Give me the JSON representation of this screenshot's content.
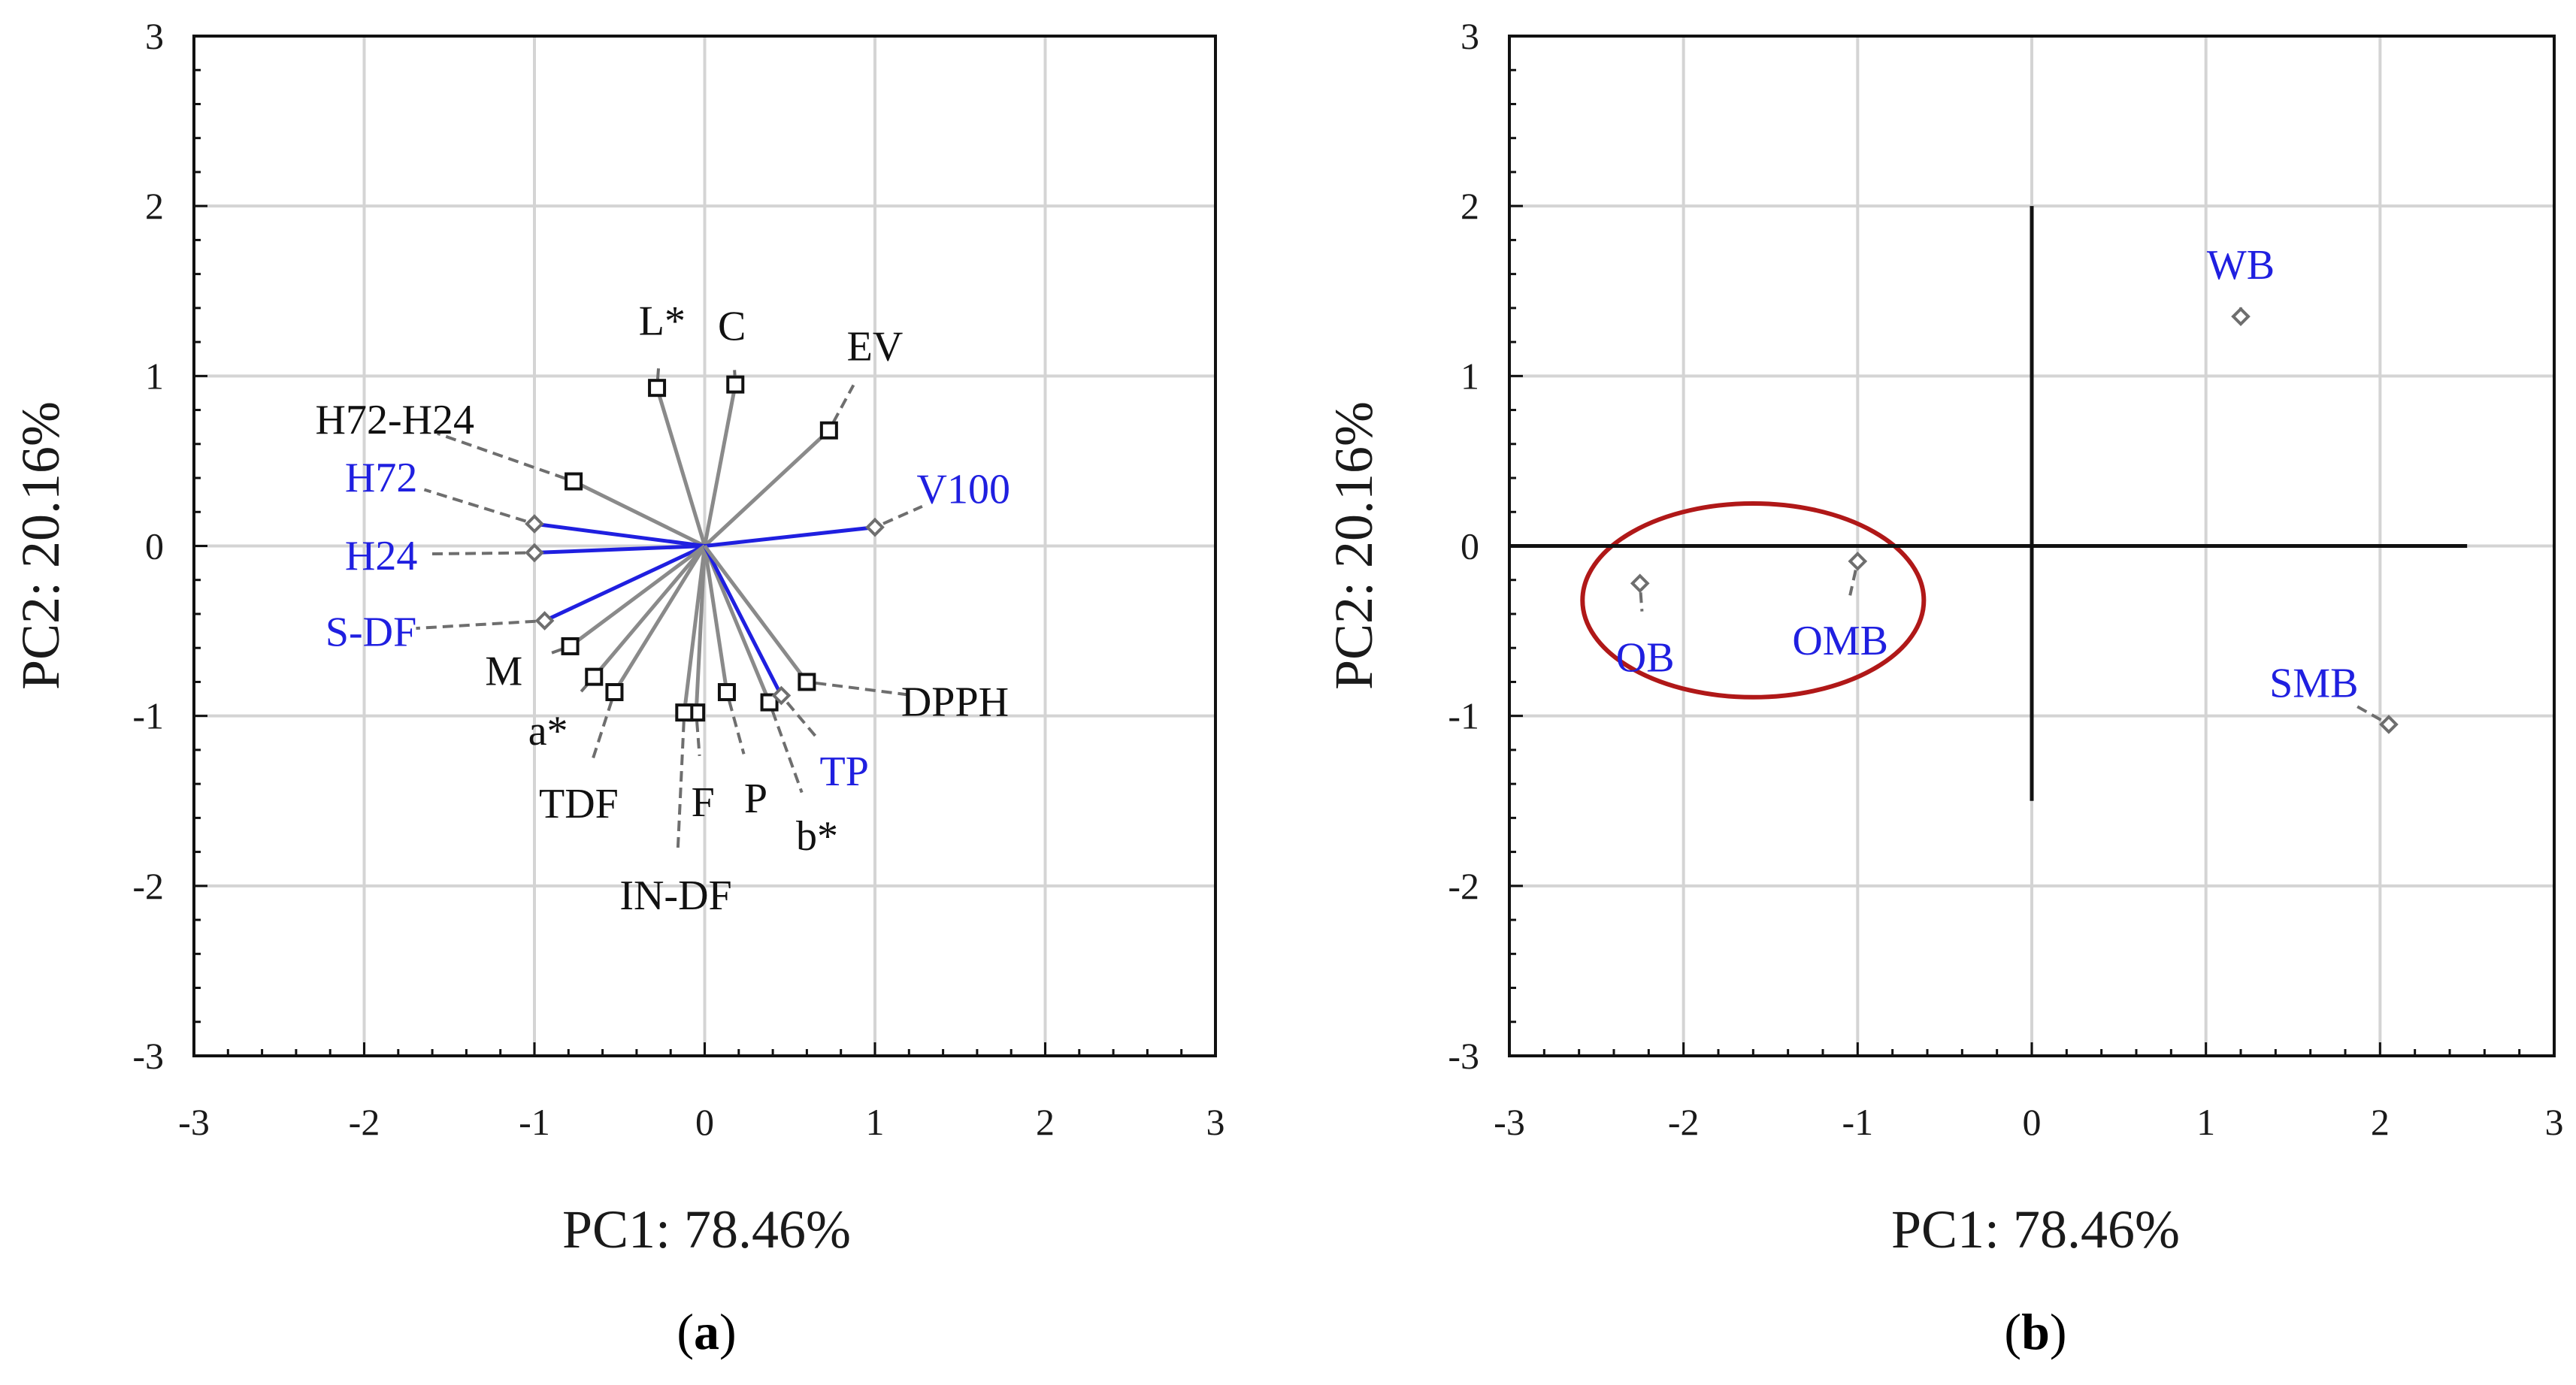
{
  "colors": {
    "blue": "#1f1fe0",
    "black": "#111111",
    "grid": "#d4d4d4",
    "vector_gray": "#8a8a8a",
    "leader": "#6e6e6e",
    "ellipse": "#b01818"
  },
  "chart_data": [
    {
      "panel": "a",
      "type": "scatter",
      "subtype": "biplot-loadings",
      "caption_open": "(",
      "caption_letter": "a",
      "caption_close": ")",
      "xlabel": "PC1: 78.46%",
      "ylabel": "PC2: 20.16%",
      "xlim": [
        -3,
        3
      ],
      "ylim": [
        -3,
        3
      ],
      "xticks": [
        -3,
        -2,
        -1,
        0,
        1,
        2,
        3
      ],
      "yticks": [
        -3,
        -2,
        -1,
        0,
        1,
        2,
        3
      ],
      "grid": true,
      "points": [
        {
          "label": "L*",
          "x": -0.28,
          "y": 0.93,
          "marker": "square",
          "color": "black",
          "lx": -0.25,
          "ly": 1.33
        },
        {
          "label": "C",
          "x": 0.18,
          "y": 0.95,
          "marker": "square",
          "color": "black",
          "lx": 0.16,
          "ly": 1.3
        },
        {
          "label": "EV",
          "x": 0.73,
          "y": 0.68,
          "marker": "square",
          "color": "black",
          "lx": 1.0,
          "ly": 1.18
        },
        {
          "label": "H72-H24",
          "x": -0.77,
          "y": 0.38,
          "marker": "square",
          "color": "black",
          "lx": -1.82,
          "ly": 0.75
        },
        {
          "label": "H72",
          "x": -1.0,
          "y": 0.13,
          "marker": "diamond",
          "color": "blue",
          "lx": -1.9,
          "ly": 0.41
        },
        {
          "label": "V100",
          "x": 1.0,
          "y": 0.11,
          "marker": "diamond",
          "color": "blue",
          "lx": 1.52,
          "ly": 0.34
        },
        {
          "label": "H24",
          "x": -1.0,
          "y": -0.04,
          "marker": "diamond",
          "color": "blue",
          "lx": -1.9,
          "ly": -0.05
        },
        {
          "label": "S-DF",
          "x": -0.94,
          "y": -0.44,
          "marker": "diamond",
          "color": "blue",
          "lx": -1.96,
          "ly": -0.5
        },
        {
          "label": "M",
          "x": -0.79,
          "y": -0.59,
          "marker": "square",
          "color": "black",
          "lx": -1.18,
          "ly": -0.73
        },
        {
          "label": "a*",
          "x": -0.65,
          "y": -0.77,
          "marker": "square",
          "color": "black",
          "lx": -0.92,
          "ly": -1.08
        },
        {
          "label": "TDF",
          "x": -0.53,
          "y": -0.86,
          "marker": "square",
          "color": "black",
          "lx": -0.74,
          "ly": -1.51
        },
        {
          "label": "F",
          "x": -0.05,
          "y": -0.98,
          "marker": "square",
          "color": "black",
          "lx": -0.01,
          "ly": -1.5
        },
        {
          "label": "IN-DF",
          "x": -0.12,
          "y": -0.98,
          "marker": "square",
          "color": "black",
          "lx": -0.17,
          "ly": -2.05
        },
        {
          "label": "P",
          "x": 0.13,
          "y": -0.86,
          "marker": "square",
          "color": "black",
          "lx": 0.3,
          "ly": -1.48
        },
        {
          "label": "b*",
          "x": 0.38,
          "y": -0.92,
          "marker": "square",
          "color": "black",
          "lx": 0.66,
          "ly": -1.7
        },
        {
          "label": "TP",
          "x": 0.45,
          "y": -0.88,
          "marker": "diamond",
          "color": "blue",
          "lx": 0.82,
          "ly": -1.32
        },
        {
          "label": "DPPH",
          "x": 0.6,
          "y": -0.8,
          "marker": "square",
          "color": "black",
          "lx": 1.47,
          "ly": -0.91
        }
      ]
    },
    {
      "panel": "b",
      "type": "scatter",
      "subtype": "biplot-scores",
      "caption_open": "(",
      "caption_letter": "b",
      "caption_close": ")",
      "xlabel": "PC1: 78.46%",
      "ylabel": "PC2: 20.16%",
      "xlim": [
        -3,
        3
      ],
      "ylim": [
        -3,
        3
      ],
      "xticks": [
        -3,
        -2,
        -1,
        0,
        1,
        2,
        3
      ],
      "yticks": [
        -3,
        -2,
        -1,
        0,
        1,
        2,
        3
      ],
      "grid": true,
      "reference_lines": {
        "horizontal_y": 0,
        "horizontal_x_range": [
          -3,
          2.5
        ],
        "vertical_x": 0,
        "vertical_y_range": [
          -1.5,
          2
        ]
      },
      "highlight_ellipse": {
        "center": [
          -1.6,
          -0.32
        ],
        "rx": 0.98,
        "ry": 0.57
      },
      "points": [
        {
          "label": "WB",
          "x": 1.2,
          "y": 1.35,
          "lx": 1.2,
          "ly": 1.66
        },
        {
          "label": "OB",
          "x": -2.25,
          "y": -0.22,
          "lx": -2.22,
          "ly": -0.65
        },
        {
          "label": "OMB",
          "x": -1.0,
          "y": -0.09,
          "lx": -1.1,
          "ly": -0.55
        },
        {
          "label": "SMB",
          "x": 2.05,
          "y": -1.05,
          "lx": 1.62,
          "ly": -0.8
        }
      ]
    }
  ]
}
